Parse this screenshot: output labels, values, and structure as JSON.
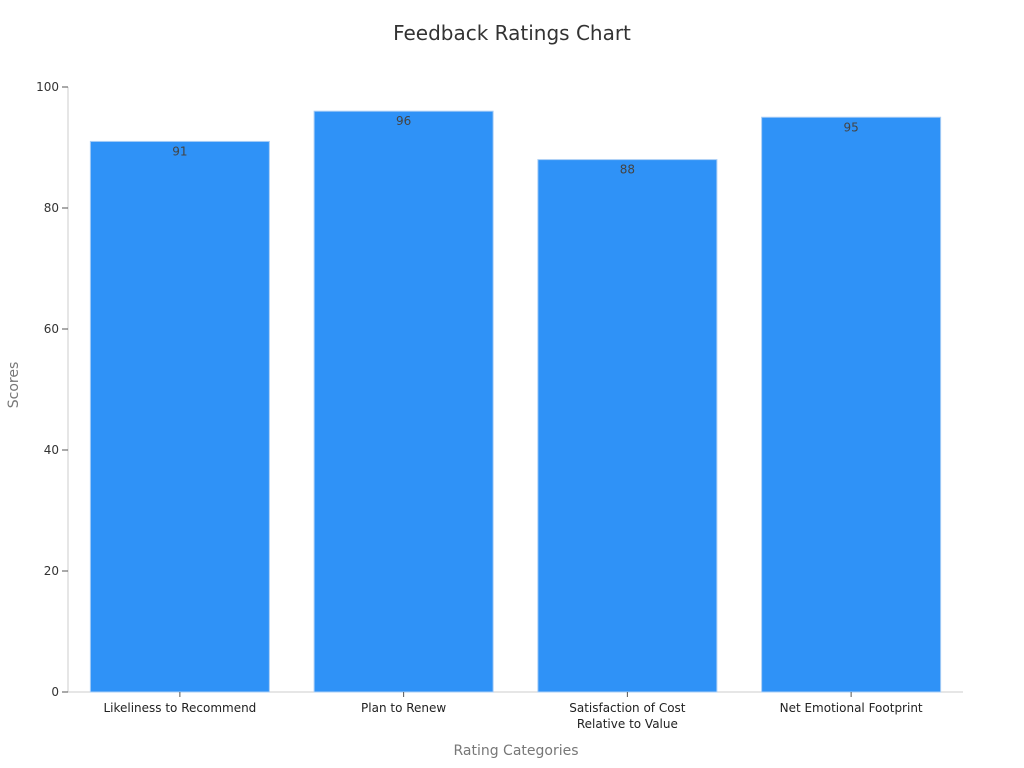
{
  "chart_data": {
    "type": "bar",
    "title": "Feedback Ratings Chart",
    "xlabel": "Rating Categories",
    "ylabel": "Scores",
    "categories": [
      [
        "Likeliness to Recommend"
      ],
      [
        "Plan to Renew"
      ],
      [
        "Satisfaction of Cost",
        "Relative to Value"
      ],
      [
        "Net Emotional Footprint"
      ]
    ],
    "values": [
      91,
      96,
      88,
      95
    ],
    "ylim": [
      0,
      100
    ],
    "yticks": [
      0,
      20,
      40,
      60,
      80,
      100
    ],
    "grid": false,
    "legend": "none",
    "bar_color": "#2f92f7",
    "bar_edge_color": "#a9cdf5"
  }
}
